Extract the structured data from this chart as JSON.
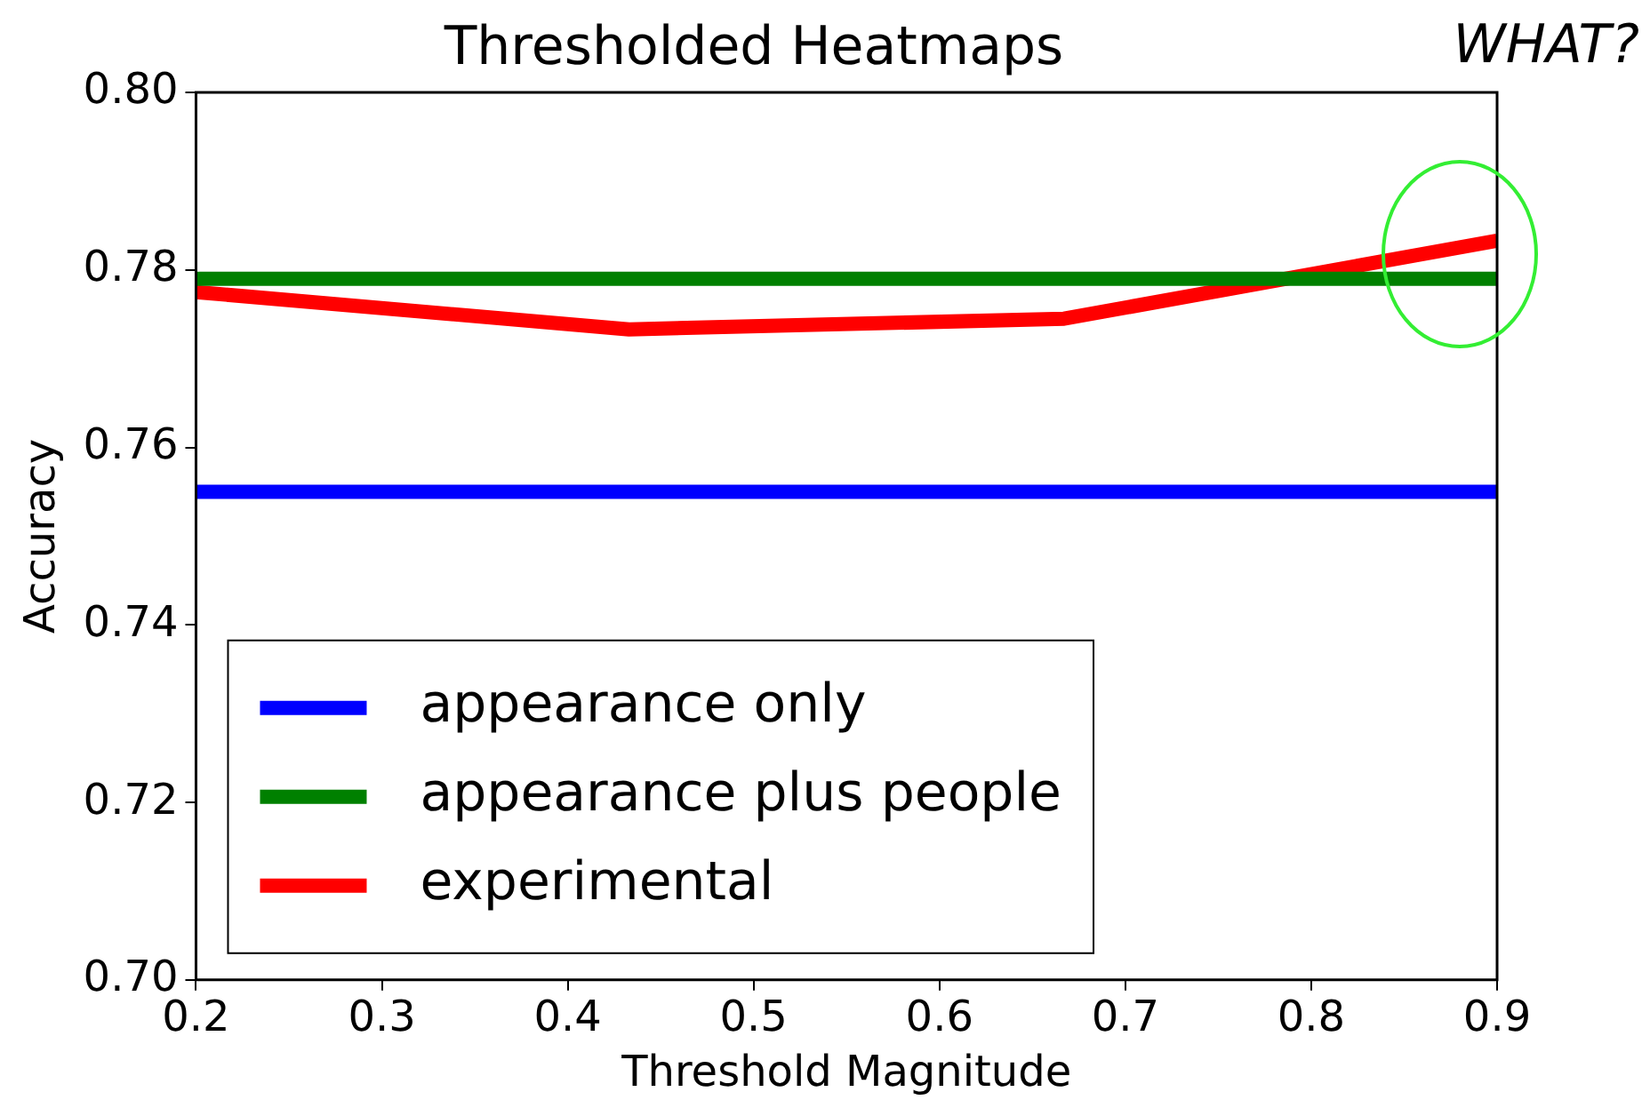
{
  "chart_data": {
    "type": "line",
    "title": "Thresholded Heatmaps",
    "xlabel": "Threshold Magnitude",
    "ylabel": "Accuracy",
    "annotations": [
      "WHAT?"
    ],
    "series": [
      {
        "name": "appearance only",
        "color": "#0000ff",
        "x": [
          0.2,
          0.9
        ],
        "values": [
          0.755,
          0.755
        ]
      },
      {
        "name": "appearance plus people",
        "color": "#008000",
        "x": [
          0.2,
          0.9
        ],
        "values": [
          0.779,
          0.779
        ]
      },
      {
        "name": "experimental",
        "color": "#ff0000",
        "x": [
          0.2,
          0.433,
          0.667,
          0.9
        ],
        "values": [
          0.7775,
          0.7733,
          0.7745,
          0.7833
        ]
      }
    ],
    "xlim": [
      0.2,
      0.9
    ],
    "xticks": [
      0.2,
      0.3,
      0.4,
      0.5,
      0.6,
      0.7,
      0.8,
      0.9
    ],
    "ylim": [
      0.7,
      0.8
    ],
    "yticks": [
      {
        "value": 0.7,
        "label": "0.70"
      },
      {
        "value": 0.72,
        "label": "0.72"
      },
      {
        "value": 0.74,
        "label": "0.74"
      },
      {
        "value": 0.76,
        "label": "0.76"
      },
      {
        "value": 0.78,
        "label": "0.78"
      },
      {
        "value": 0.8,
        "label": "0.80"
      }
    ],
    "grid": false,
    "legend": "bottom left",
    "marker": "none",
    "line_style": "solid"
  }
}
